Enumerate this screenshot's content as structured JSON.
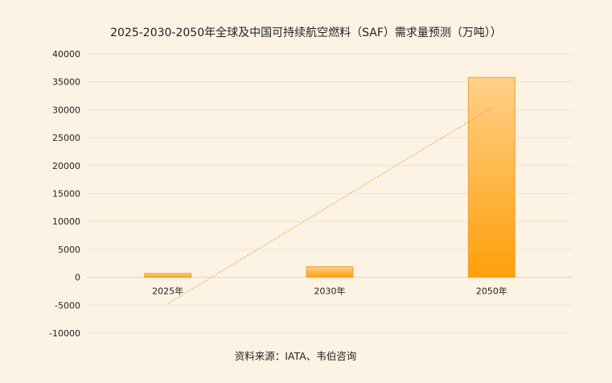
{
  "chart_data": {
    "type": "bar",
    "title": "2025-2030-2050年全球及中国可持续航空燃料（SAF）需求量预测（万吨））",
    "categories": [
      "2025年",
      "2030年",
      "2050年"
    ],
    "values": [
      700,
      1900,
      35800
    ],
    "ylim": [
      -10000,
      40000
    ],
    "yticks": [
      40000,
      35000,
      30000,
      25000,
      20000,
      15000,
      10000,
      5000,
      0,
      -5000,
      -10000
    ],
    "xlabel": "",
    "ylabel": "",
    "grid": true,
    "trendline": {
      "type": "linear",
      "start": -4750,
      "end": 30350,
      "color": "#e0a030"
    },
    "colors": {
      "bar_top": "#ffd08a",
      "bar_bottom": "#ff9f0a",
      "bar_edge": "#e8a040",
      "grid": "#f0e2cc"
    },
    "source": "资料来源：IATA、韦伯咨询"
  }
}
